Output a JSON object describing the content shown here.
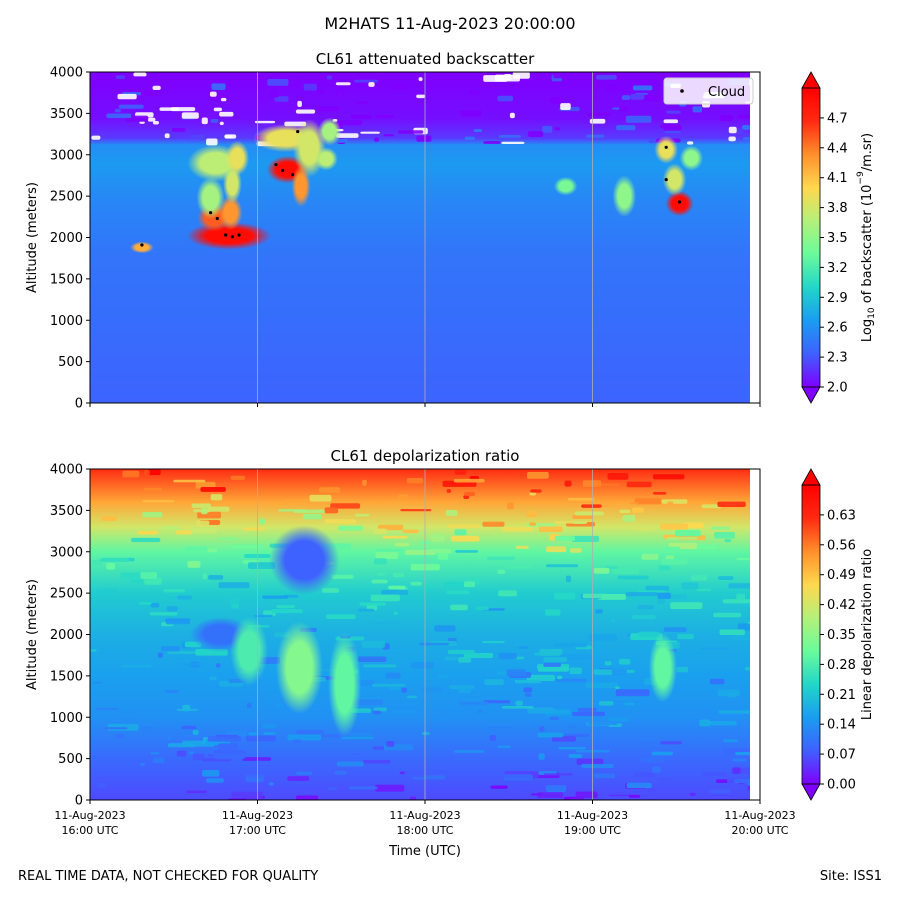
{
  "title": "M2HATS 11-Aug-2023 20:00:00",
  "footer": {
    "quality_note": "REAL TIME DATA, NOT CHECKED FOR QUALITY",
    "site": "Site: ISS1"
  },
  "colors": {
    "cloud_marker": "#000000",
    "colormap": [
      "#7f00ff",
      "#3f60ff",
      "#1a9df0",
      "#22d6c8",
      "#6afb9c",
      "#b4f07a",
      "#ffd84e",
      "#ff8f2c",
      "#ff2a12",
      "#ff0000"
    ]
  },
  "chart_data": [
    {
      "type": "heatmap",
      "title": "CL61 attenuated backscatter",
      "xlabel": "",
      "ylabel": "Altitude (meters)",
      "x_ticks": [
        "",
        "",
        "",
        "",
        ""
      ],
      "ylim": [
        0,
        4000
      ],
      "y_ticks": [
        "0",
        "500",
        "1000",
        "1500",
        "2000",
        "2500",
        "3000",
        "3500",
        "4000"
      ],
      "y_tick_values": [
        0,
        500,
        1000,
        1500,
        2000,
        2500,
        3000,
        3500,
        4000
      ],
      "colorbar": {
        "label_pre": "Log",
        "label_sub": "10",
        "label_mid": " of backscatter (10",
        "label_sup": "−9",
        "label_post": "/m.sr)",
        "range": [
          2.0,
          5.0
        ],
        "tick_values": [
          2.0,
          2.3,
          2.6,
          2.9,
          3.2,
          3.5,
          3.8,
          4.1,
          4.4,
          4.7
        ],
        "tick_labels": [
          "2.0",
          "2.3",
          "2.6",
          "2.9",
          "3.2",
          "3.5",
          "3.8",
          "4.1",
          "4.4",
          "4.7"
        ]
      },
      "legend": {
        "label": "Cloud",
        "position": "top-right"
      },
      "cloud_points": [
        {
          "t": 0.31,
          "alt": 1910
        },
        {
          "t": 0.72,
          "alt": 2300
        },
        {
          "t": 0.76,
          "alt": 2230
        },
        {
          "t": 0.81,
          "alt": 2030
        },
        {
          "t": 0.85,
          "alt": 2010
        },
        {
          "t": 0.89,
          "alt": 2030
        },
        {
          "t": 1.11,
          "alt": 2880
        },
        {
          "t": 1.15,
          "alt": 2810
        },
        {
          "t": 1.21,
          "alt": 2760
        },
        {
          "t": 1.24,
          "alt": 3280
        },
        {
          "t": 3.44,
          "alt": 3090
        },
        {
          "t": 3.44,
          "alt": 2700
        },
        {
          "t": 3.52,
          "alt": 2430
        }
      ],
      "features": [
        {
          "t": 0.31,
          "alt": 1880,
          "dt": 0.05,
          "dalt": 50,
          "value": 4.2
        },
        {
          "t": 0.83,
          "alt": 2020,
          "dt": 0.18,
          "dalt": 120,
          "value": 4.9
        },
        {
          "t": 0.74,
          "alt": 2240,
          "dt": 0.07,
          "dalt": 120,
          "value": 4.5
        },
        {
          "t": 0.72,
          "alt": 2480,
          "dt": 0.06,
          "dalt": 180,
          "value": 3.6
        },
        {
          "t": 0.84,
          "alt": 2300,
          "dt": 0.05,
          "dalt": 150,
          "value": 4.3
        },
        {
          "t": 0.85,
          "alt": 2650,
          "dt": 0.04,
          "dalt": 170,
          "value": 3.8
        },
        {
          "t": 0.75,
          "alt": 2900,
          "dt": 0.12,
          "dalt": 160,
          "value": 3.7
        },
        {
          "t": 0.88,
          "alt": 2960,
          "dt": 0.05,
          "dalt": 150,
          "value": 3.9
        },
        {
          "t": 1.18,
          "alt": 2820,
          "dt": 0.09,
          "dalt": 120,
          "value": 4.9
        },
        {
          "t": 1.17,
          "alt": 3200,
          "dt": 0.14,
          "dalt": 120,
          "value": 3.9
        },
        {
          "t": 1.26,
          "alt": 2620,
          "dt": 0.04,
          "dalt": 180,
          "value": 4.3
        },
        {
          "t": 1.31,
          "alt": 3080,
          "dt": 0.07,
          "dalt": 250,
          "value": 3.8
        },
        {
          "t": 1.41,
          "alt": 2950,
          "dt": 0.05,
          "dalt": 100,
          "value": 3.7
        },
        {
          "t": 1.43,
          "alt": 3280,
          "dt": 0.05,
          "dalt": 120,
          "value": 3.6
        },
        {
          "t": 2.84,
          "alt": 2620,
          "dt": 0.05,
          "dalt": 80,
          "value": 3.4
        },
        {
          "t": 3.19,
          "alt": 2500,
          "dt": 0.05,
          "dalt": 180,
          "value": 3.5
        },
        {
          "t": 3.52,
          "alt": 2410,
          "dt": 0.06,
          "dalt": 110,
          "value": 4.9
        },
        {
          "t": 3.49,
          "alt": 2700,
          "dt": 0.05,
          "dalt": 140,
          "value": 3.8
        },
        {
          "t": 3.44,
          "alt": 3060,
          "dt": 0.05,
          "dalt": 120,
          "value": 3.9
        },
        {
          "t": 3.59,
          "alt": 2960,
          "dt": 0.05,
          "dalt": 110,
          "value": 3.5
        }
      ]
    },
    {
      "type": "heatmap",
      "title": "CL61 depolarization ratio",
      "xlabel": "Time (UTC)",
      "ylabel": "Altitude (meters)",
      "x_ticks": [
        {
          "date": "11-Aug-2023",
          "time": "16:00 UTC"
        },
        {
          "date": "11-Aug-2023",
          "time": "17:00 UTC"
        },
        {
          "date": "11-Aug-2023",
          "time": "18:00 UTC"
        },
        {
          "date": "11-Aug-2023",
          "time": "19:00 UTC"
        },
        {
          "date": "11-Aug-2023",
          "time": "20:00 UTC"
        }
      ],
      "ylim": [
        0,
        4000
      ],
      "y_ticks": [
        "0",
        "500",
        "1000",
        "1500",
        "2000",
        "2500",
        "3000",
        "3500",
        "4000"
      ],
      "y_tick_values": [
        0,
        500,
        1000,
        1500,
        2000,
        2500,
        3000,
        3500,
        4000
      ],
      "colorbar": {
        "label": "Linear depolarization ratio",
        "range": [
          0.0,
          0.7
        ],
        "tick_values": [
          0.0,
          0.07,
          0.14,
          0.21,
          0.28,
          0.35,
          0.42,
          0.49,
          0.56,
          0.63
        ],
        "tick_labels": [
          "0.00",
          "0.07",
          "0.14",
          "0.21",
          "0.28",
          "0.35",
          "0.42",
          "0.49",
          "0.56",
          "0.63"
        ]
      },
      "profile": [
        {
          "alt": 0,
          "value": 0.06
        },
        {
          "alt": 500,
          "value": 0.09
        },
        {
          "alt": 1000,
          "value": 0.14
        },
        {
          "alt": 1500,
          "value": 0.16
        },
        {
          "alt": 2000,
          "value": 0.18
        },
        {
          "alt": 2500,
          "value": 0.22
        },
        {
          "alt": 3000,
          "value": 0.3
        },
        {
          "alt": 3300,
          "value": 0.42
        },
        {
          "alt": 3600,
          "value": 0.52
        },
        {
          "alt": 4000,
          "value": 0.62
        }
      ],
      "features": [
        {
          "t": 1.28,
          "alt": 2900,
          "dt": 0.15,
          "dalt": 300,
          "value": 0.08
        },
        {
          "t": 0.78,
          "alt": 2000,
          "dt": 0.13,
          "dalt": 150,
          "value": 0.1
        },
        {
          "t": 1.25,
          "alt": 1600,
          "dt": 0.1,
          "dalt": 400,
          "value": 0.34
        },
        {
          "t": 1.52,
          "alt": 1400,
          "dt": 0.07,
          "dalt": 450,
          "value": 0.3
        },
        {
          "t": 3.42,
          "alt": 1600,
          "dt": 0.06,
          "dalt": 300,
          "value": 0.3
        },
        {
          "t": 0.95,
          "alt": 1800,
          "dt": 0.08,
          "dalt": 300,
          "value": 0.28
        }
      ]
    }
  ]
}
